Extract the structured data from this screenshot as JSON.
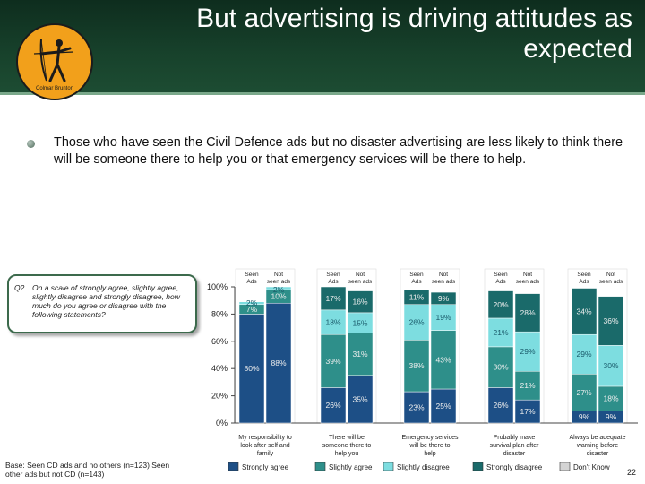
{
  "slide": {
    "title": "But advertising is driving attitudes as expected",
    "logo_text": "Colmar Brunton",
    "bullet": "Those who have seen the Civil Defence ads but no disaster advertising are less likely to think there will be someone there to help you or that emergency services will be there to help.",
    "question_label": "Q2",
    "question_text": "On a scale of strongly agree, slightly agree, slightly disagree and strongly disagree, how much do you agree or disagree with the following statements?",
    "base_note": "Base: Seen CD ads and no others (n=123)  Seen other ads but not CD (n=143)",
    "page_number": "22"
  },
  "colors": {
    "header_bg": "#17412b",
    "strongly_agree": "#1d4f86",
    "slightly_agree": "#2e8f8a",
    "slightly_disagree": "#7ddde0",
    "strongly_disagree": "#1a6a6a",
    "dont_know": "#d4d4d4"
  },
  "chart_data": {
    "type": "bar",
    "stacked": true,
    "ylim": [
      0,
      100
    ],
    "yticks": [
      "0%",
      "20%",
      "40%",
      "60%",
      "80%",
      "100%"
    ],
    "groups": [
      {
        "label": "My responsibility to look after self and family",
        "bars": [
          {
            "label": "Seen Ads",
            "values": [
              80,
              7,
              2,
              0,
              0
            ],
            "labels": [
              "80%",
              "7%",
              "2%",
              "",
              ""
            ]
          },
          {
            "label": "Not seen ads",
            "values": [
              88,
              10,
              2,
              0,
              0
            ],
            "labels": [
              "88%",
              "10%",
              "2%",
              "",
              ""
            ]
          }
        ]
      },
      {
        "label": "There will be someone there to help you",
        "bars": [
          {
            "label": "Seen Ads",
            "values": [
              26,
              39,
              18,
              17,
              0
            ],
            "labels": [
              "26%",
              "39%",
              "18%",
              "17%",
              ""
            ]
          },
          {
            "label": "Not seen ads",
            "values": [
              35,
              31,
              15,
              16,
              0
            ],
            "labels": [
              "35%",
              "31%",
              "15%",
              "16%",
              ""
            ]
          }
        ]
      },
      {
        "label": "Emergency services will be there to help",
        "bars": [
          {
            "label": "Seen Ads",
            "values": [
              23,
              38,
              26,
              11,
              0
            ],
            "labels": [
              "23%",
              "38%",
              "26%",
              "11%",
              ""
            ]
          },
          {
            "label": "Not seen ads",
            "values": [
              25,
              43,
              19,
              9,
              0
            ],
            "labels": [
              "25%",
              "43%",
              "19%",
              "9%",
              ""
            ]
          }
        ]
      },
      {
        "label": "Probably make survival plan after disaster",
        "bars": [
          {
            "label": "Seen Ads",
            "values": [
              26,
              30,
              21,
              20,
              0
            ],
            "labels": [
              "26%",
              "30%",
              "21%",
              "20%",
              ""
            ]
          },
          {
            "label": "Not seen ads",
            "values": [
              17,
              21,
              29,
              28,
              0
            ],
            "labels": [
              "17%",
              "21%",
              "29%",
              "28%",
              ""
            ]
          }
        ]
      },
      {
        "label": "Always be adequate warning before disaster",
        "bars": [
          {
            "label": "Seen Ads",
            "values": [
              9,
              27,
              29,
              34,
              0
            ],
            "labels": [
              "9%",
              "27%",
              "29%",
              "34%",
              ""
            ]
          },
          {
            "label": "Not seen ads",
            "values": [
              9,
              18,
              30,
              36,
              0
            ],
            "labels": [
              "9%",
              "18%",
              "30%",
              "36%",
              ""
            ]
          }
        ]
      }
    ],
    "series": [
      {
        "name": "Strongly agree",
        "color": "#1d4f86"
      },
      {
        "name": "Slightly agree",
        "color": "#2e8f8a"
      },
      {
        "name": "Slightly disagree",
        "color": "#7ddde0"
      },
      {
        "name": "Strongly disagree",
        "color": "#1a6a6a"
      },
      {
        "name": "Don't Know",
        "color": "#d4d4d4"
      }
    ],
    "legend_position": "bottom",
    "grid": false
  }
}
